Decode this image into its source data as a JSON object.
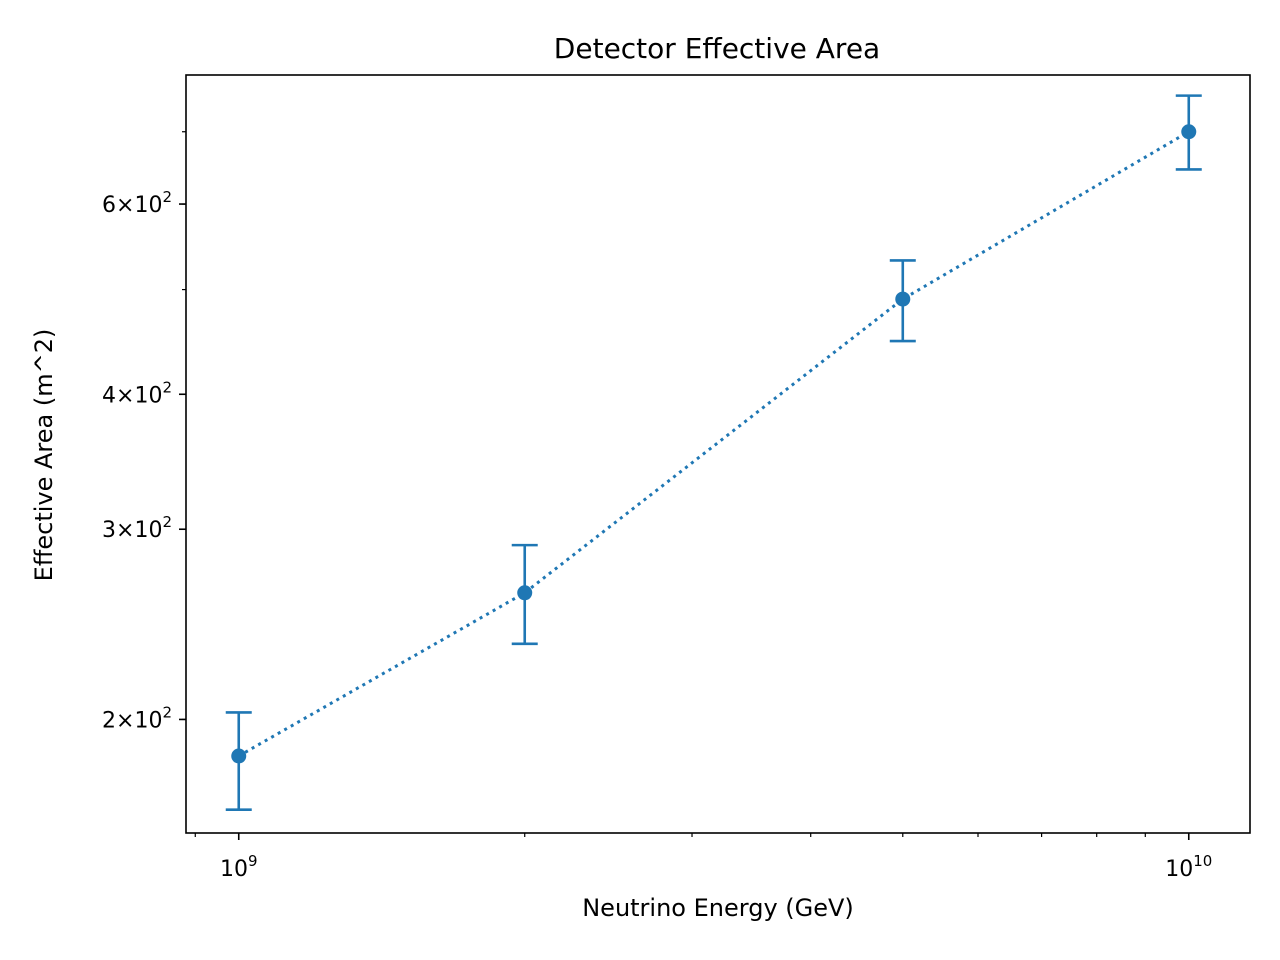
{
  "chart_data": {
    "type": "line",
    "title": "Detector Effective Area",
    "xlabel": "Neutrino Energy (GeV)",
    "ylabel": "Effective Area (m^2)",
    "xscale": "log",
    "yscale": "log",
    "xlim": [
      880000000,
      11600000000
    ],
    "ylim": [
      157,
      790
    ],
    "grid": false,
    "legend": "none",
    "x_ticks": [
      {
        "value": 1000000000,
        "base": "10",
        "exp": "9"
      },
      {
        "value": 10000000000,
        "base": "10",
        "exp": "10"
      }
    ],
    "y_ticks": [
      {
        "value": 200,
        "mantissa": "2",
        "base": "10",
        "exp": "2"
      },
      {
        "value": 300,
        "mantissa": "3",
        "base": "10",
        "exp": "2"
      },
      {
        "value": 400,
        "mantissa": "4",
        "base": "10",
        "exp": "2"
      },
      {
        "value": 600,
        "mantissa": "6",
        "base": "10",
        "exp": "2"
      }
    ],
    "series": [
      {
        "color": "#1f77b4",
        "line_style": "dotted",
        "marker": "circle",
        "points": [
          {
            "x": 1000000000,
            "y": 185,
            "yerr_low": 165,
            "yerr_high": 203
          },
          {
            "x": 2000000000,
            "y": 262,
            "yerr_low": 235,
            "yerr_high": 290
          },
          {
            "x": 5000000000,
            "y": 490,
            "yerr_low": 448,
            "yerr_high": 532
          },
          {
            "x": 10000000000,
            "y": 700,
            "yerr_low": 646,
            "yerr_high": 756
          }
        ]
      }
    ]
  }
}
